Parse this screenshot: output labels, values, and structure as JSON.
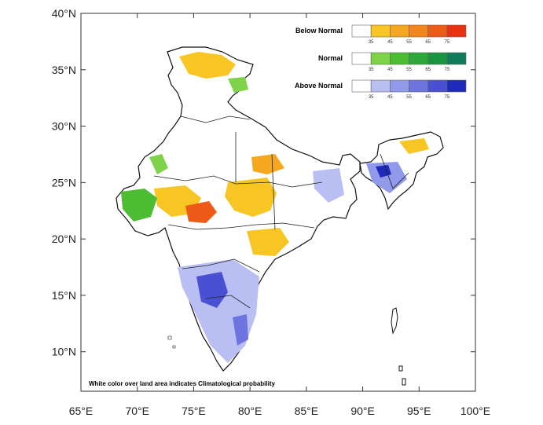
{
  "map": {
    "lat_labels": [
      "40°N",
      "35°N",
      "30°N",
      "25°N",
      "20°N",
      "15°N",
      "10°N"
    ],
    "lon_labels": [
      "65°E",
      "70°E",
      "75°E",
      "80°E",
      "85°E",
      "90°E",
      "95°E",
      "100°E"
    ],
    "extent": {
      "lon": [
        65,
        100
      ],
      "lat": [
        6.5,
        40
      ]
    },
    "footnote": "White color over land area indicates Climatological probability"
  },
  "legend": [
    {
      "title": "Below Normal",
      "colors": [
        "#ffffff",
        "#f7c624",
        "#f5a81f",
        "#f2861c",
        "#ee5a17",
        "#e83212"
      ],
      "ticks": [
        "35",
        "45",
        "55",
        "65",
        "75"
      ]
    },
    {
      "title": "Normal",
      "colors": [
        "#ffffff",
        "#7ed34a",
        "#4cbd32",
        "#2ea83a",
        "#1a9440",
        "#117a5a"
      ],
      "ticks": [
        "35",
        "45",
        "55",
        "65",
        "75"
      ]
    },
    {
      "title": "Above Normal",
      "colors": [
        "#ffffff",
        "#b9bff2",
        "#9099ea",
        "#6e74df",
        "#4a50d2",
        "#1e2ab8"
      ],
      "ticks": [
        "35",
        "45",
        "55",
        "65",
        "75"
      ]
    }
  ]
}
